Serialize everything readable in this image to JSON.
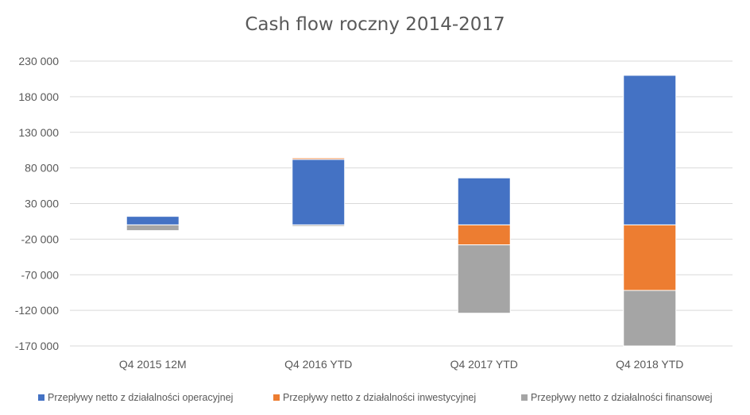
{
  "chart_data": {
    "type": "bar",
    "stacked": true,
    "title": "Cash flow roczny 2014-2017",
    "categories": [
      "Q4 2015 12M",
      "Q4 2016 YTD",
      "Q4 2017 YTD",
      "Q4 2018 YTD"
    ],
    "series": [
      {
        "name": "Przepływy netto z działalności operacyjnej",
        "color": "#4472C4",
        "values": [
          12000,
          92000,
          66000,
          210000
        ]
      },
      {
        "name": "Przepływy netto z działalności inwestycyjnej",
        "color": "#ED7D31",
        "values": [
          0,
          2000,
          -28000,
          -92000
        ]
      },
      {
        "name": "Przepływy netto z działalności finansowej",
        "color": "#A5A5A5",
        "values": [
          -8000,
          -2000,
          -96000,
          -78000
        ]
      }
    ],
    "yticks": [
      "230 000",
      "180 000",
      "130 000",
      "80 000",
      "30 000",
      "-20 000",
      "-70 000",
      "-120 000",
      "-170 000"
    ],
    "ytick_values": [
      230000,
      180000,
      130000,
      80000,
      30000,
      -20000,
      -70000,
      -120000,
      -170000
    ],
    "ylim": [
      -170000,
      230000
    ],
    "grid": true,
    "legend_position": "bottom"
  }
}
